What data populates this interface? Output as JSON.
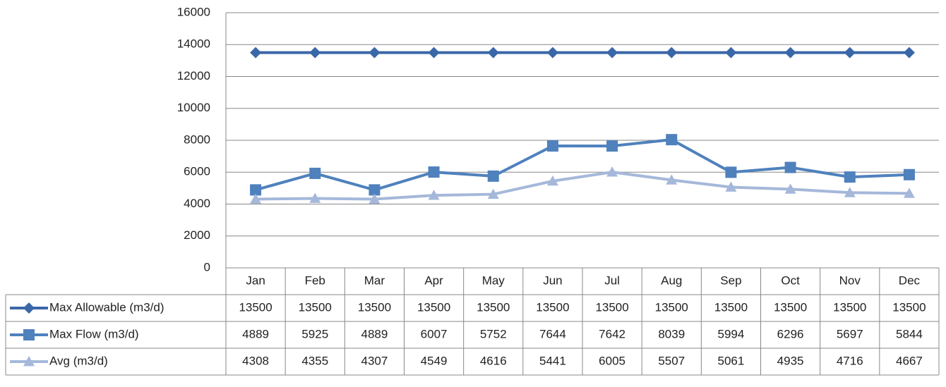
{
  "chart_data": {
    "type": "line",
    "categories": [
      "Jan",
      "Feb",
      "Mar",
      "Apr",
      "May",
      "Jun",
      "Jul",
      "Aug",
      "Sep",
      "Oct",
      "Nov",
      "Dec"
    ],
    "series": [
      {
        "name": "Max Allowable (m3/d)",
        "color": "#3a67a8",
        "marker": "diamond",
        "values": [
          13500,
          13500,
          13500,
          13500,
          13500,
          13500,
          13500,
          13500,
          13500,
          13500,
          13500,
          13500
        ]
      },
      {
        "name": "Max Flow (m3/d)",
        "color": "#4f81bd",
        "marker": "square",
        "values": [
          4889,
          5925,
          4889,
          6007,
          5752,
          7644,
          7642,
          8039,
          5994,
          6296,
          5697,
          5844
        ]
      },
      {
        "name": "Avg (m3/d)",
        "color": "#a5b8da",
        "marker": "triangle",
        "values": [
          4308,
          4355,
          4307,
          4549,
          4616,
          5441,
          6005,
          5507,
          5061,
          4935,
          4716,
          4667
        ]
      }
    ],
    "ylim": [
      0,
      16000
    ],
    "yticks": [
      0,
      2000,
      4000,
      6000,
      8000,
      10000,
      12000,
      14000,
      16000
    ],
    "grid": true,
    "data_table": true
  }
}
